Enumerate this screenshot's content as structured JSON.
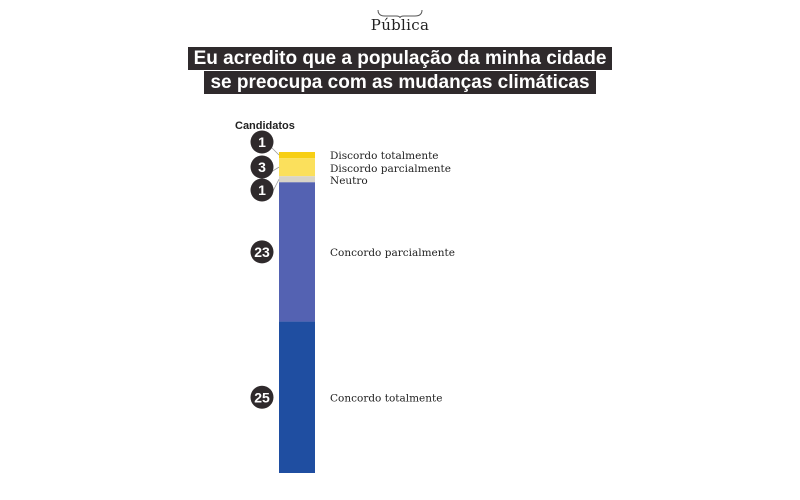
{
  "brand": {
    "name": "Pública"
  },
  "title": {
    "line1": "Eu acredito que a população da minha cidade",
    "line2": "se preocupa com as mudanças climáticas"
  },
  "chart_data": {
    "type": "bar",
    "stacked": true,
    "ylabel": "Candidatos",
    "categories": [
      "Discordo totalmente",
      "Discordo parcialmente",
      "Neutro",
      "Concordo parcialmente",
      "Concordo totalmente"
    ],
    "values": [
      1,
      3,
      1,
      23,
      25
    ],
    "colors": [
      "#f7cf14",
      "#fbe05c",
      "#d8d4c8",
      "#5462b2",
      "#1f4ea1"
    ],
    "legend_placement": "right",
    "grid": false
  }
}
